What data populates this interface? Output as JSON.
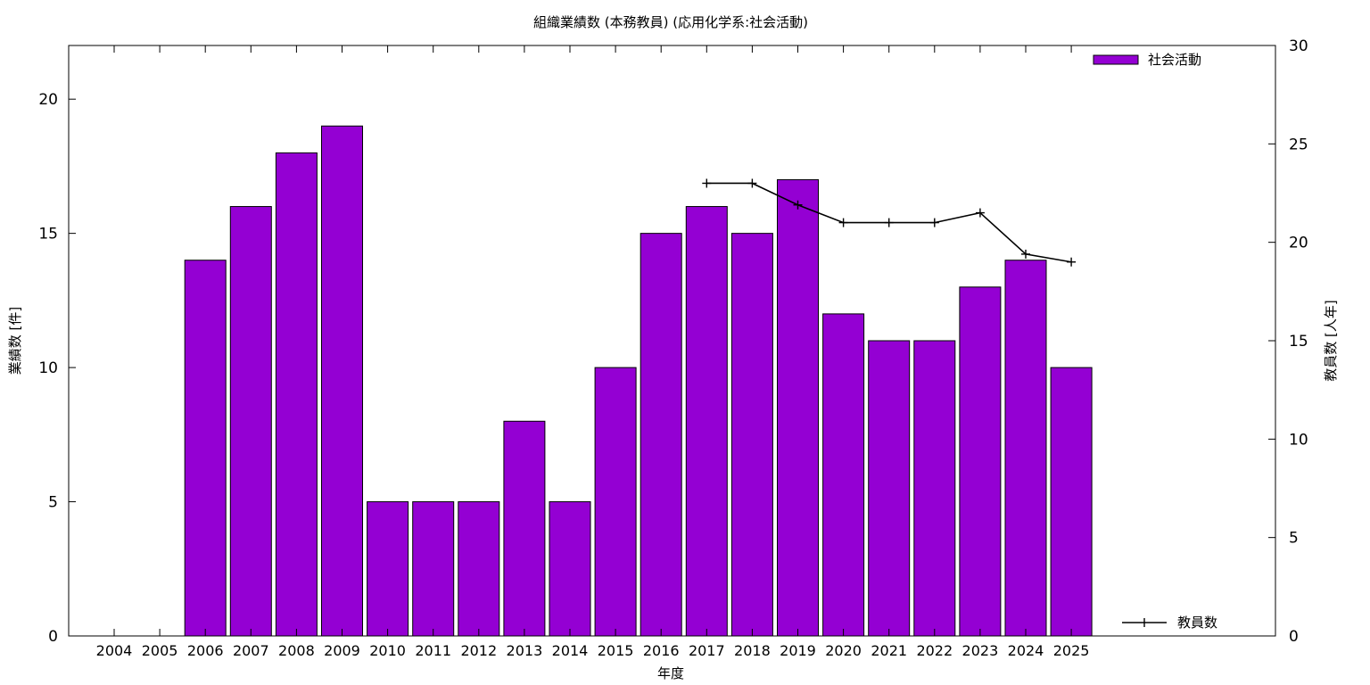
{
  "chart_data": {
    "type": "bar",
    "title": "組織業績数 (本務教員) (応用化学系:社会活動)",
    "xlabel": "年度",
    "ylabel": "業績数 [件]",
    "y2label": "教員数 [人年]",
    "categories": [
      "2004",
      "2005",
      "2006",
      "2007",
      "2008",
      "2009",
      "2010",
      "2011",
      "2012",
      "2013",
      "2014",
      "2015",
      "2016",
      "2017",
      "2018",
      "2019",
      "2020",
      "2021",
      "2022",
      "2023",
      "2024",
      "2025"
    ],
    "ylim": [
      0,
      22
    ],
    "y2lim": [
      0,
      30
    ],
    "yticks": [
      0,
      5,
      10,
      15,
      20
    ],
    "y2ticks": [
      0,
      5,
      10,
      15,
      20,
      25,
      30
    ],
    "grid": false,
    "series": [
      {
        "name": "社会活動",
        "type": "bar",
        "axis": "left",
        "color": "#9400d3",
        "values": [
          0,
          0,
          14,
          16,
          18,
          19,
          5,
          5,
          5,
          8,
          5,
          10,
          15,
          16,
          15,
          17,
          12,
          11,
          11,
          13,
          14,
          10
        ]
      },
      {
        "name": "教員数",
        "type": "line",
        "axis": "right",
        "color": "#000000",
        "marker": "plus",
        "x": [
          "2017",
          "2018",
          "2019",
          "2020",
          "2021",
          "2022",
          "2023",
          "2024",
          "2025"
        ],
        "values": [
          23.0,
          23.0,
          21.9,
          21.0,
          21.0,
          21.0,
          21.5,
          19.4,
          19.0
        ]
      }
    ],
    "legend": {
      "bar_position": "top-right",
      "line_position": "bottom-right"
    }
  }
}
